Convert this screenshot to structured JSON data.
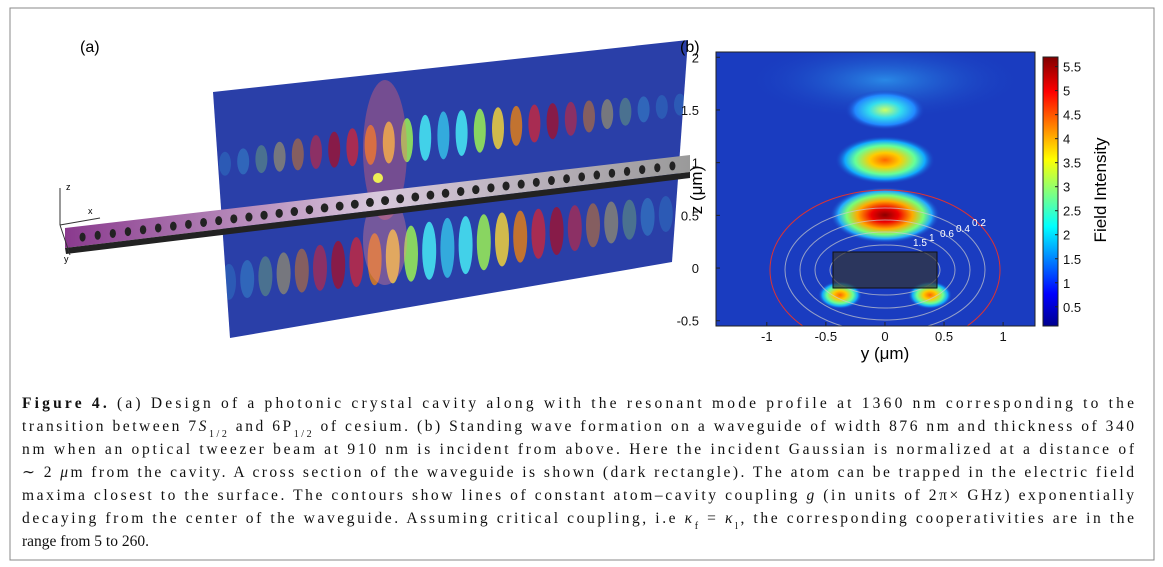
{
  "figure": {
    "panel_a": {
      "label": "(a)",
      "axes": {
        "x": "x",
        "y": "y",
        "z": "z"
      }
    },
    "panel_b": {
      "label": "(b)",
      "x_label": "y (μm)",
      "y_label": "z (μm)",
      "colorbar_label": "Field Intensity",
      "xlim": [
        -1.43,
        1.27
      ],
      "ylim": [
        -0.55,
        2.05
      ],
      "clim": [
        0.1,
        5.7
      ],
      "xticks": [
        -1,
        -0.5,
        0,
        0.5,
        1
      ],
      "yticks": [
        -0.5,
        0,
        0.5,
        1,
        1.5,
        2
      ],
      "cticks": [
        0.5,
        1,
        1.5,
        2,
        2.5,
        3,
        3.5,
        4,
        4.5,
        5,
        5.5
      ],
      "contour_labels": [
        1.5,
        1,
        0.6,
        0.4,
        0.2
      ]
    },
    "caption": {
      "lines": [
        [
          "Figure 4.",
          " (a) Design of a photonic crystal cavity along with the resonant mode profile at 1360 nm corresponding to the"
        ],
        [
          "transition between 7",
          "S",
          "1/2",
          " and 6P",
          "1/2",
          " of cesium. (b) Standing wave formation on a waveguide of width 876 nm and thickness of 340"
        ],
        [
          "nm when an optical tweezer beam at 910 nm is incident from above. Here the incident Gaussian is normalized at a distance of"
        ],
        [
          "∼ 2 ",
          "μ",
          "m from the cavity. A cross section of the waveguide is shown (dark rectangle). The atom can be trapped in the electric field"
        ],
        [
          "maxima closest to the surface. The contours show lines of constant atom–cavity coupling ",
          "g",
          " (in units of 2π× GHz) exponentially"
        ],
        [
          "decaying from the center of the waveguide. Assuming critical coupling, i.e ",
          "κ",
          "f",
          " = ",
          "κ",
          "l",
          ", the corresponding cooperativities are in the"
        ],
        [
          "range from 5 to 260."
        ]
      ]
    }
  }
}
